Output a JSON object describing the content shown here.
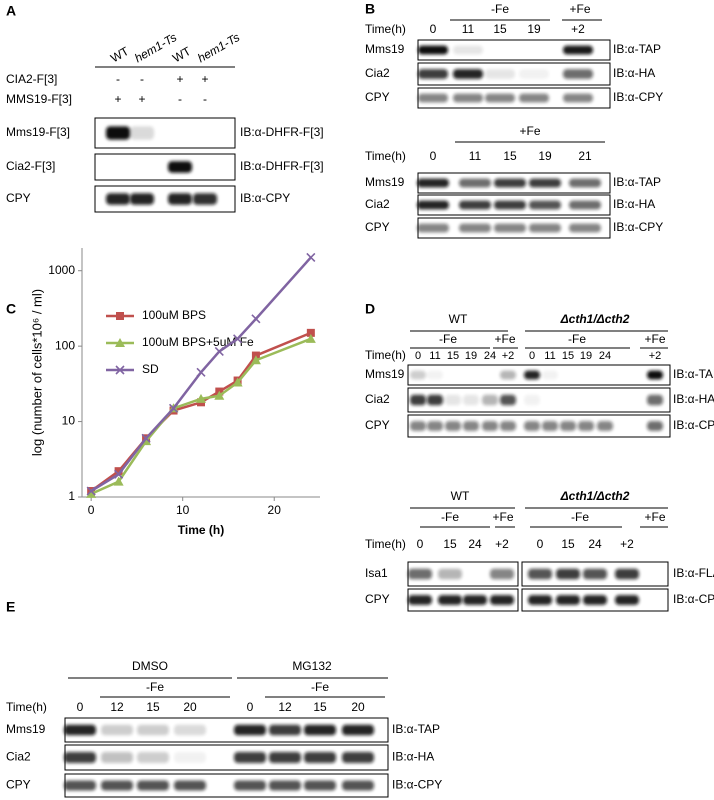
{
  "panels": {
    "A": {
      "label": "A",
      "lanes": [
        "WT",
        "hem1-Ts",
        "WT",
        "hem1-Ts"
      ],
      "conditions": [
        {
          "name": "CIA2-F[3]",
          "signs": [
            "-",
            "-",
            "+",
            "+"
          ]
        },
        {
          "name": "MMS19-F[3]",
          "signs": [
            "+",
            "+",
            "-",
            "-"
          ]
        }
      ],
      "rows": [
        {
          "name": "Mms19-F[3]",
          "antibody": "IB:α-DHFR-F[3]"
        },
        {
          "name": "Cia2-F[3]",
          "antibody": "IB:α-DHFR-F[3]"
        },
        {
          "name": "CPY",
          "antibody": "IB:α-CPY"
        }
      ]
    },
    "B": {
      "label": "B",
      "blots": [
        {
          "groups": [
            "-Fe",
            "+Fe"
          ],
          "time_label": "Time(h)",
          "times": [
            "0",
            "11",
            "15",
            "19",
            "+2"
          ],
          "rows": [
            {
              "name": "Mms19",
              "antibody": "IB:α-TAP"
            },
            {
              "name": "Cia2",
              "antibody": "IB:α-HA"
            },
            {
              "name": "CPY",
              "antibody": "IB:α-CPY"
            }
          ]
        },
        {
          "groups": [
            "+Fe"
          ],
          "time_label": "Time(h)",
          "times": [
            "0",
            "11",
            "15",
            "19",
            "21"
          ],
          "rows": [
            {
              "name": "Mms19",
              "antibody": "IB:α-TAP"
            },
            {
              "name": "Cia2",
              "antibody": "IB:α-HA"
            },
            {
              "name": "CPY",
              "antibody": "IB:α-CPY"
            }
          ]
        }
      ]
    },
    "C": {
      "label": "C"
    },
    "D": {
      "label": "D",
      "blots": [
        {
          "strains": [
            "WT",
            "Δcth1/Δcth2"
          ],
          "groups": [
            "-Fe",
            "+Fe",
            "-Fe",
            "+Fe"
          ],
          "time_label": "Time(h)",
          "times": [
            "0",
            "11",
            "15",
            "19",
            "24",
            "+2",
            "0",
            "11",
            "15",
            "19",
            "24",
            "+2"
          ],
          "rows": [
            {
              "name": "Mms19",
              "antibody": "IB:α-TAP"
            },
            {
              "name": "Cia2",
              "antibody": "IB:α-HA"
            },
            {
              "name": "CPY",
              "antibody": "IB:α-CPY"
            }
          ]
        },
        {
          "strains": [
            "WT",
            "Δcth1/Δcth2"
          ],
          "groups": [
            "-Fe",
            "+Fe",
            "-Fe",
            "+Fe"
          ],
          "time_label": "Time(h)",
          "times": [
            "0",
            "15",
            "24",
            "+2",
            "0",
            "15",
            "24",
            "+2"
          ],
          "rows": [
            {
              "name": "Isa1",
              "antibody": "IB:α-FLAG"
            },
            {
              "name": "CPY",
              "antibody": "IB:α-CPY"
            }
          ]
        }
      ]
    },
    "E": {
      "label": "E",
      "treatments": [
        "DMSO",
        "MG132"
      ],
      "groups": [
        "-Fe",
        "-Fe"
      ],
      "time_label": "Time(h)",
      "times": [
        "0",
        "12",
        "15",
        "20",
        "0",
        "12",
        "15",
        "20"
      ],
      "rows": [
        {
          "name": "Mms19",
          "antibody": "IB:α-TAP"
        },
        {
          "name": "Cia2",
          "antibody": "IB:α-HA"
        },
        {
          "name": "CPY",
          "antibody": "IB:α-CPY"
        }
      ]
    }
  },
  "chart_data": {
    "type": "line",
    "x_label": "Time (h)",
    "y_label": "log (number of cells*10⁶ / ml)",
    "x": [
      0,
      3,
      6,
      9,
      12,
      14,
      16,
      18,
      24
    ],
    "series": [
      {
        "name": "100uM BPS",
        "color": "#c0504d",
        "marker": "square",
        "values": [
          1.2,
          2.2,
          6,
          14,
          18,
          25,
          35,
          75,
          150
        ]
      },
      {
        "name": "100uM BPS+5uM Fe",
        "color": "#9bbb59",
        "marker": "triangle",
        "values": [
          1.1,
          1.6,
          5.5,
          15,
          20,
          22,
          33,
          65,
          125
        ]
      },
      {
        "name": "SD",
        "color": "#8064a2",
        "marker": "x",
        "values": [
          1.2,
          2,
          6,
          15,
          45,
          85,
          125,
          230,
          1500
        ]
      }
    ],
    "xlim": [
      -1,
      25
    ],
    "xticks": [
      0,
      10,
      20
    ],
    "ylim": [
      1,
      2000
    ],
    "yticks": [
      1,
      10,
      100,
      1000
    ],
    "yscale": "log"
  }
}
